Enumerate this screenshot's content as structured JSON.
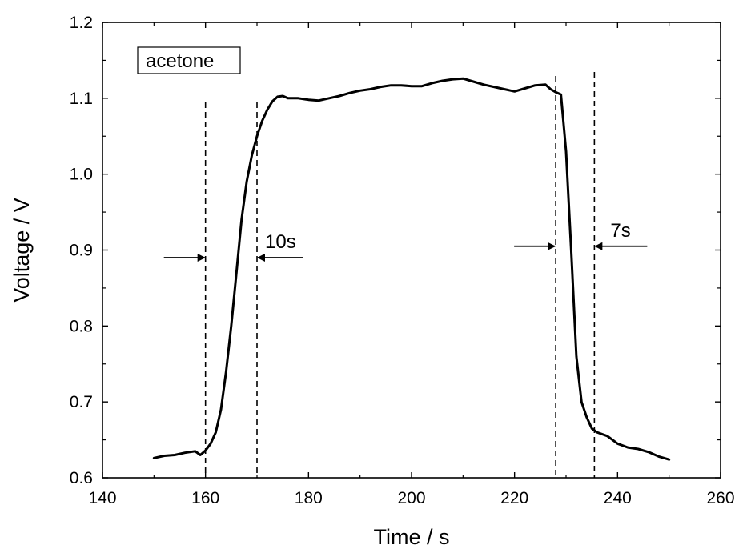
{
  "chart_data": {
    "type": "line",
    "title": "",
    "xlabel": "Time / s",
    "ylabel": "Voltage / V",
    "xlim": [
      140,
      260
    ],
    "ylim": [
      0.6,
      1.2
    ],
    "x_ticks": [
      140,
      160,
      180,
      200,
      220,
      240,
      260
    ],
    "x_tick_labels": [
      "140",
      "160",
      "180",
      "200",
      "220",
      "240",
      "260"
    ],
    "y_ticks": [
      0.6,
      0.7,
      0.8,
      0.9,
      1.0,
      1.1,
      1.2
    ],
    "y_tick_labels": [
      "0.6",
      "0.7",
      "0.8",
      "0.9",
      "1.0",
      "1.1",
      "1.2"
    ],
    "grid": false,
    "legend_box": "acetone",
    "series": [
      {
        "name": "acetone",
        "color": "#000000",
        "x": [
          150,
          152,
          154,
          156,
          158,
          159,
          160,
          161,
          162,
          163,
          164,
          165,
          166,
          167,
          168,
          169,
          170,
          171,
          172,
          173,
          174,
          175,
          176,
          178,
          180,
          182,
          184,
          186,
          188,
          190,
          192,
          194,
          196,
          198,
          200,
          202,
          204,
          206,
          208,
          210,
          212,
          214,
          216,
          218,
          220,
          222,
          224,
          226,
          227,
          228,
          229,
          230,
          231,
          232,
          233,
          234,
          235,
          236,
          238,
          240,
          242,
          244,
          246,
          248,
          250
        ],
        "y": [
          0.626,
          0.629,
          0.63,
          0.633,
          0.635,
          0.63,
          0.636,
          0.645,
          0.66,
          0.69,
          0.74,
          0.8,
          0.87,
          0.94,
          0.99,
          1.025,
          1.05,
          1.07,
          1.085,
          1.096,
          1.102,
          1.103,
          1.1,
          1.1,
          1.098,
          1.097,
          1.1,
          1.103,
          1.107,
          1.11,
          1.112,
          1.115,
          1.117,
          1.117,
          1.116,
          1.116,
          1.12,
          1.123,
          1.125,
          1.126,
          1.122,
          1.118,
          1.115,
          1.112,
          1.109,
          1.113,
          1.117,
          1.118,
          1.112,
          1.108,
          1.105,
          1.03,
          0.9,
          0.76,
          0.7,
          0.68,
          0.665,
          0.66,
          0.655,
          0.645,
          0.64,
          0.638,
          0.634,
          0.628,
          0.624
        ]
      }
    ],
    "markers": [
      {
        "x": 160,
        "label": ""
      },
      {
        "x": 170,
        "label": ""
      },
      {
        "x": 228,
        "label": ""
      },
      {
        "x": 235.5,
        "label": ""
      }
    ],
    "annotations": [
      {
        "text": "10s",
        "between": [
          160,
          170
        ],
        "y": 0.89
      },
      {
        "text": "7s",
        "between": [
          228,
          235.5
        ],
        "y": 0.905
      }
    ]
  }
}
